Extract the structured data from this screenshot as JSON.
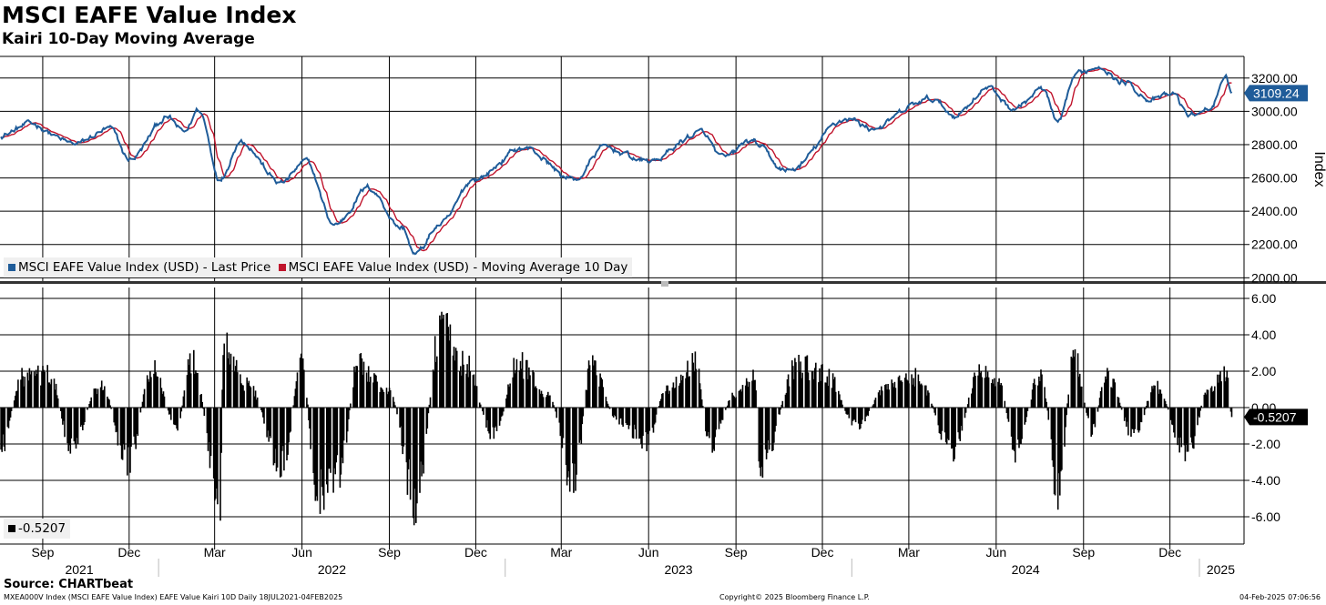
{
  "header": {
    "title": "MSCI EAFE Value Index",
    "subtitle": "Kairi 10-Day Moving Average"
  },
  "footer": {
    "source": "Source: CHARTbeat",
    "meta": "MXEA000V Index (MSCI EAFE Value Index) EAFE Value Kairi 10D  Daily 18JUL2021-04FEB2025",
    "copyright": "Copyright© 2025 Bloomberg Finance L.P.",
    "timestamp": "04-Feb-2025 07:06:56"
  },
  "colors": {
    "price": "#1f5c99",
    "ma": "#c0142c",
    "kairi": "#000000",
    "grid": "#000000",
    "legend_bg": "#f0f0f0"
  },
  "chart_data": [
    {
      "type": "line",
      "ylabel": "Index",
      "ylim": [
        1980,
        3330
      ],
      "yticks": [
        "2000.00",
        "2200.00",
        "2400.00",
        "2600.00",
        "2800.00",
        "3000.00",
        "3200.00"
      ],
      "last_value_label": "3109.24",
      "legend": [
        "MSCI EAFE Value Index (USD) - Last Price",
        "MSCI EAFE Value Index (USD) - Moving Average 10 Day"
      ],
      "x_anchors": [
        [
          "2021-07-18",
          2860
        ],
        [
          "2021-08-20",
          2920
        ],
        [
          "2021-10-05",
          2800
        ],
        [
          "2021-11-10",
          2890
        ],
        [
          "2021-12-01",
          2710
        ],
        [
          "2022-01-10",
          2960
        ],
        [
          "2022-01-28",
          2870
        ],
        [
          "2022-02-12",
          3010
        ],
        [
          "2022-03-07",
          2600
        ],
        [
          "2022-03-28",
          2830
        ],
        [
          "2022-05-10",
          2570
        ],
        [
          "2022-06-05",
          2690
        ],
        [
          "2022-07-05",
          2320
        ],
        [
          "2022-08-10",
          2540
        ],
        [
          "2022-09-15",
          2300
        ],
        [
          "2022-09-28",
          2140
        ],
        [
          "2022-10-25",
          2320
        ],
        [
          "2022-12-01",
          2600
        ],
        [
          "2023-01-20",
          2780
        ],
        [
          "2023-03-15",
          2590
        ],
        [
          "2023-04-15",
          2780
        ],
        [
          "2023-06-01",
          2700
        ],
        [
          "2023-07-25",
          2870
        ],
        [
          "2023-08-20",
          2710
        ],
        [
          "2023-09-15",
          2820
        ],
        [
          "2023-10-25",
          2640
        ],
        [
          "2023-12-28",
          2960
        ],
        [
          "2024-01-20",
          2900
        ],
        [
          "2024-03-25",
          3070
        ],
        [
          "2024-04-18",
          2980
        ],
        [
          "2024-05-22",
          3140
        ],
        [
          "2024-06-20",
          3020
        ],
        [
          "2024-07-20",
          3130
        ],
        [
          "2024-08-05",
          2920
        ],
        [
          "2024-08-25",
          3220
        ],
        [
          "2024-09-20",
          3280
        ],
        [
          "2024-10-10",
          3180
        ],
        [
          "2024-11-15",
          3070
        ],
        [
          "2024-12-05",
          3100
        ],
        [
          "2024-12-20",
          2980
        ],
        [
          "2025-01-10",
          3010
        ],
        [
          "2025-01-29",
          3180
        ],
        [
          "2025-02-04",
          3109.24
        ]
      ]
    },
    {
      "type": "bar",
      "ylim": [
        -7.4,
        6.6
      ],
      "yticks": [
        "6.00",
        "4.00",
        "2.00",
        "0.00",
        "-2.00",
        "-4.00",
        "-6.00"
      ],
      "last_value_label": "-0.5207",
      "legend": [
        "-0.5207"
      ],
      "x_anchors": [
        [
          "2021-07-18",
          -2.8
        ],
        [
          "2021-08-10",
          2.0
        ],
        [
          "2021-09-08",
          2.2
        ],
        [
          "2021-10-01",
          -2.5
        ],
        [
          "2021-11-01",
          1.5
        ],
        [
          "2021-11-30",
          -3.5
        ],
        [
          "2021-12-25",
          2.5
        ],
        [
          "2022-01-20",
          -1.2
        ],
        [
          "2022-02-05",
          3.2
        ],
        [
          "2022-03-07",
          -6.3
        ],
        [
          "2022-03-10",
          4.0
        ],
        [
          "2022-04-05",
          1.5
        ],
        [
          "2022-05-12",
          -3.8
        ],
        [
          "2022-06-01",
          3.0
        ],
        [
          "2022-06-17",
          -6.1
        ],
        [
          "2022-07-10",
          -4.2
        ],
        [
          "2022-07-30",
          2.8
        ],
        [
          "2022-09-01",
          1.0
        ],
        [
          "2022-09-29",
          -6.1
        ],
        [
          "2022-10-25",
          5.2
        ],
        [
          "2022-11-20",
          2.8
        ],
        [
          "2022-12-20",
          -1.8
        ],
        [
          "2023-01-15",
          3.0
        ],
        [
          "2023-02-15",
          0.8
        ],
        [
          "2023-03-15",
          -5.0
        ],
        [
          "2023-04-01",
          2.7
        ],
        [
          "2023-05-01",
          -1.0
        ],
        [
          "2023-05-30",
          -2.2
        ],
        [
          "2023-06-20",
          1.2
        ],
        [
          "2023-07-20",
          2.8
        ],
        [
          "2023-08-05",
          -2.5
        ],
        [
          "2023-08-30",
          0.8
        ],
        [
          "2023-09-20",
          2.0
        ],
        [
          "2023-09-27",
          -3.8
        ],
        [
          "2023-11-05",
          2.8
        ],
        [
          "2023-12-05",
          2.2
        ],
        [
          "2024-01-05",
          -1.2
        ],
        [
          "2024-02-10",
          1.5
        ],
        [
          "2024-03-10",
          2.0
        ],
        [
          "2024-04-16",
          -2.8
        ],
        [
          "2024-05-15",
          2.5
        ],
        [
          "2024-06-05",
          1.5
        ],
        [
          "2024-06-20",
          -2.8
        ],
        [
          "2024-07-18",
          2.2
        ],
        [
          "2024-08-05",
          -5.4
        ],
        [
          "2024-08-22",
          3.5
        ],
        [
          "2024-09-10",
          -1.5
        ],
        [
          "2024-09-25",
          2.2
        ],
        [
          "2024-10-25",
          -2.0
        ],
        [
          "2024-11-15",
          1.5
        ],
        [
          "2024-12-20",
          -3.2
        ],
        [
          "2025-01-10",
          1.2
        ],
        [
          "2025-01-29",
          2.2
        ],
        [
          "2025-02-04",
          -0.5207
        ]
      ]
    }
  ],
  "x_axis": {
    "month_labels": [
      {
        "label": "Sep",
        "date": "2021-09-01"
      },
      {
        "label": "Dec",
        "date": "2021-12-01"
      },
      {
        "label": "Mar",
        "date": "2022-03-01"
      },
      {
        "label": "Jun",
        "date": "2022-06-01"
      },
      {
        "label": "Sep",
        "date": "2022-09-01"
      },
      {
        "label": "Dec",
        "date": "2022-12-01"
      },
      {
        "label": "Mar",
        "date": "2023-03-01"
      },
      {
        "label": "Jun",
        "date": "2023-06-01"
      },
      {
        "label": "Sep",
        "date": "2023-09-01"
      },
      {
        "label": "Dec",
        "date": "2023-12-01"
      },
      {
        "label": "Mar",
        "date": "2024-03-01"
      },
      {
        "label": "Jun",
        "date": "2024-06-01"
      },
      {
        "label": "Sep",
        "date": "2024-09-01"
      },
      {
        "label": "Dec",
        "date": "2024-12-01"
      }
    ],
    "year_labels": [
      {
        "label": "2021",
        "from": "2021-07-18",
        "to": "2022-01-01"
      },
      {
        "label": "2022",
        "from": "2022-01-01",
        "to": "2023-01-01"
      },
      {
        "label": "2023",
        "from": "2023-01-01",
        "to": "2024-01-01"
      },
      {
        "label": "2024",
        "from": "2024-01-01",
        "to": "2025-01-01"
      },
      {
        "label": "2025",
        "from": "2025-01-01",
        "to": "2025-02-15"
      }
    ]
  }
}
